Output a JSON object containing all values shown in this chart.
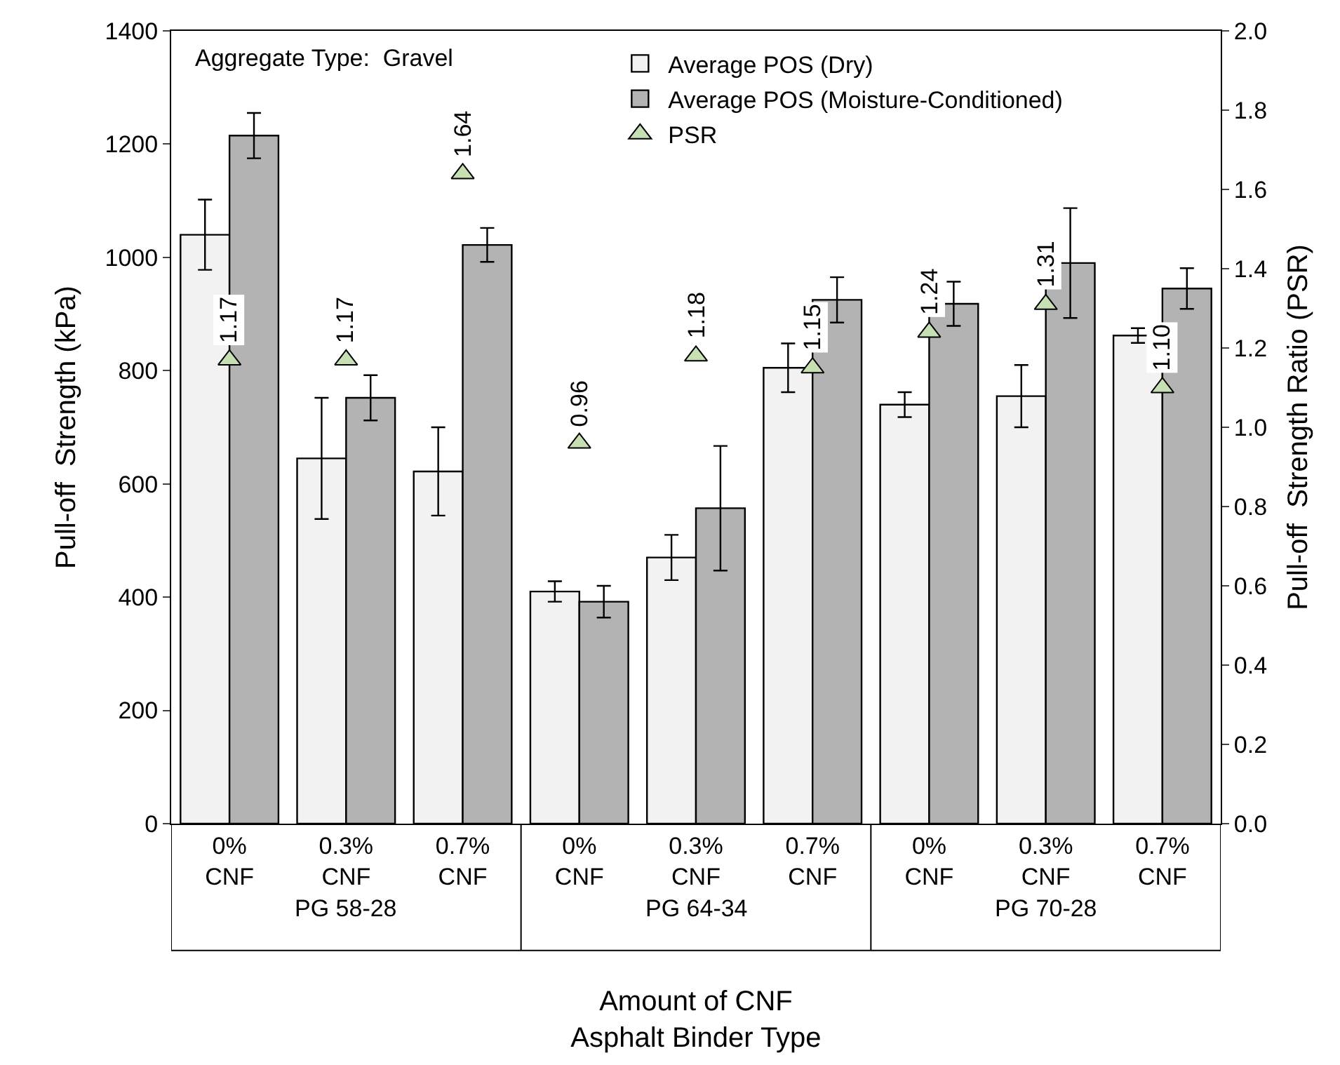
{
  "chart_data": {
    "type": "bar",
    "xlabel": "Amount of CNF\nAsphalt Binder Type",
    "ylabel": "Pull-off  Strength (kPa)",
    "y2label": "Pull-off  Strength Ratio (PSR)",
    "categories": [
      "0%\nCNF",
      "0.3%\nCNF",
      "0.7%\nCNF",
      "0%\nCNF",
      "0.3%\nCNF",
      "0.7%\nCNF",
      "0%\nCNF",
      "0.3%\nCNF",
      "0.7%\nCNF"
    ],
    "annotations": [
      "Aggregate Type:  Gravel",
      "PG 58-28",
      "PG 64-34",
      "PG 70-28"
    ],
    "series": [
      {
        "name": "Average POS (Dry)",
        "color": "#f2f2f2",
        "values": [
          1040,
          645,
          622,
          410,
          470,
          805,
          740,
          755,
          862
        ],
        "errors": [
          62,
          107,
          78,
          18,
          40,
          43,
          22,
          55,
          13
        ]
      },
      {
        "name": "Average POS (Moisture-Conditioned)",
        "color": "#b3b3b3",
        "values": [
          1215,
          752,
          1022,
          392,
          557,
          925,
          918,
          990,
          945
        ],
        "errors": [
          40,
          40,
          30,
          28,
          110,
          40,
          39,
          97,
          36
        ]
      },
      {
        "name": "PSR",
        "type": "scatter",
        "axis": "y2",
        "marker": "triangle",
        "color": "#c6e0b4",
        "values": [
          1.17,
          1.17,
          1.64,
          0.96,
          1.18,
          1.15,
          1.24,
          1.31,
          1.1
        ],
        "value_labels": [
          "1.17",
          "1.17",
          "1.64",
          "0.96",
          "1.18",
          "1.15",
          "1.24",
          "1.31",
          "1.10"
        ]
      }
    ],
    "ylim": [
      0,
      1400
    ],
    "yticks": [
      0,
      200,
      400,
      600,
      800,
      1000,
      1200,
      1400
    ],
    "y2lim": [
      0,
      2.0
    ],
    "y2ticks": [
      {
        "value": 0,
        "label": "0.0"
      },
      {
        "value": 0.2,
        "label": "0.2"
      },
      {
        "value": 0.4,
        "label": "0.4"
      },
      {
        "value": 0.6,
        "label": "0.6"
      },
      {
        "value": 0.8,
        "label": "0.8"
      },
      {
        "value": 1.0,
        "label": "1.0"
      },
      {
        "value": 1.2,
        "label": "1.2"
      },
      {
        "value": 1.4,
        "label": "1.4"
      },
      {
        "value": 1.6,
        "label": "1.6"
      },
      {
        "value": 1.8,
        "label": "1.8"
      },
      {
        "value": 2.0,
        "label": "2.0"
      }
    ],
    "grid": false,
    "legend": "top"
  }
}
